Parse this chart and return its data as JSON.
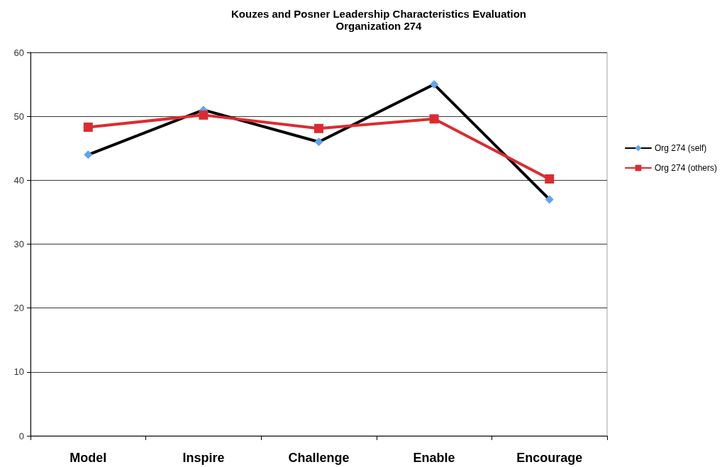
{
  "chart_data": {
    "type": "line",
    "title": "Kouzes and Posner Leadership Characteristics Evaluation",
    "subtitle": "Organization 274",
    "categories": [
      "Model",
      "Inspire",
      "Challenge",
      "Enable",
      "Encourage"
    ],
    "series": [
      {
        "name": "Org 274 (self)",
        "color": "#000000",
        "colors": [
          "#5ea4f2",
          "#5ea4f2",
          "#5ea4f2",
          "#5ea4f2",
          "#5ea4f2"
        ],
        "marker": "diamond",
        "values": [
          44,
          51,
          46,
          55,
          37
        ]
      },
      {
        "name": "Org 274 (others)",
        "color": "#dc2b30",
        "marker": "square",
        "values": [
          48.3,
          50.2,
          48.1,
          49.6,
          40.2
        ]
      }
    ],
    "ylim": [
      0,
      60
    ],
    "yticks": [
      0,
      10,
      20,
      30,
      40,
      50,
      60
    ],
    "grid": "y",
    "legend": "right",
    "line_style": "solid"
  }
}
